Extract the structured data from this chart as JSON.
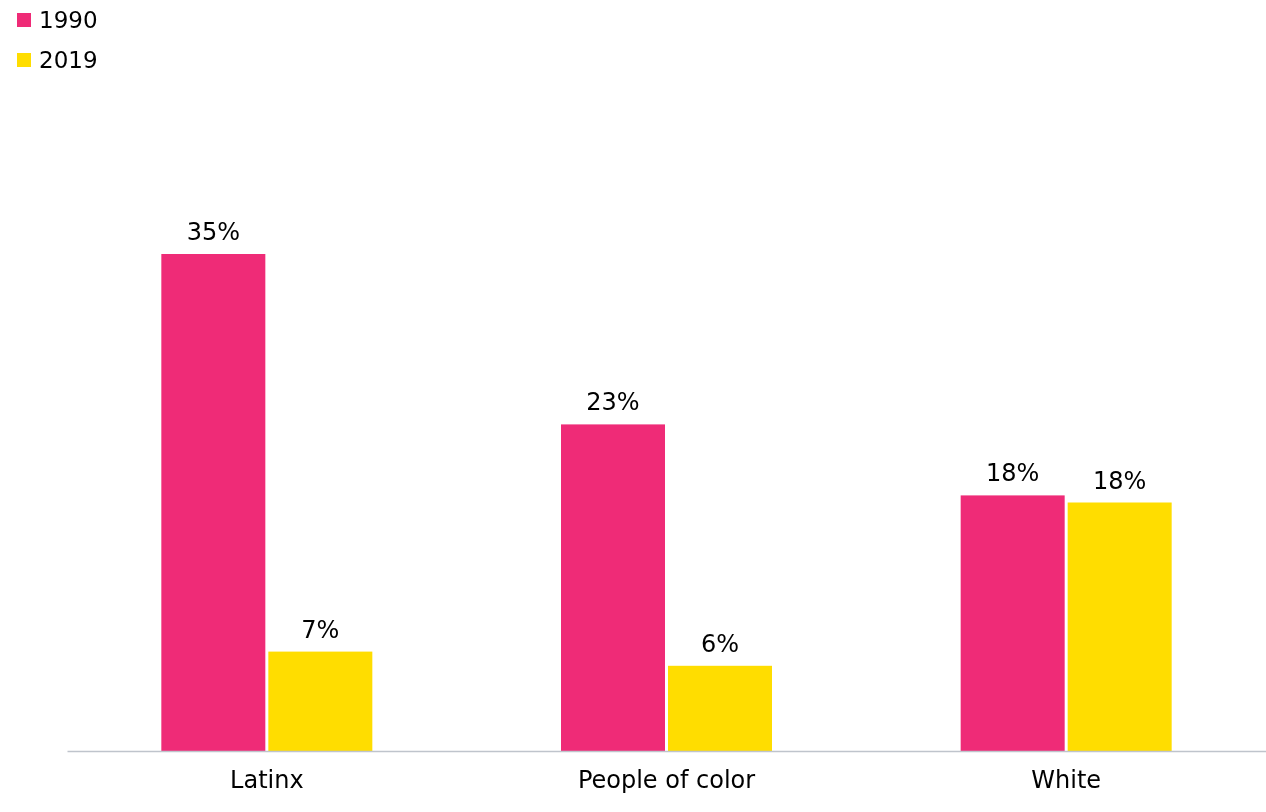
{
  "chart_data": {
    "type": "bar",
    "categories": [
      "Latinx",
      "People of color",
      "White"
    ],
    "series": [
      {
        "name": "1990",
        "color": "#ef2b77",
        "values": [
          35,
          23,
          18
        ],
        "value_labels": [
          "35%",
          "23%",
          "18%"
        ]
      },
      {
        "name": "2019",
        "color": "#ffdd00",
        "values": [
          7,
          6,
          17.5
        ],
        "value_labels": [
          "7%",
          "6%",
          "18%"
        ]
      }
    ],
    "legend": "top left"
  }
}
